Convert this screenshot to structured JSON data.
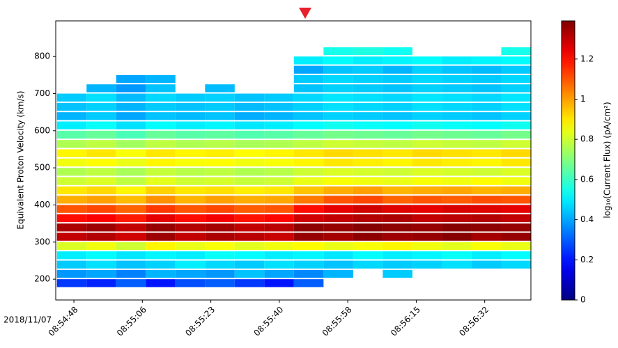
{
  "chart_data": {
    "type": "heatmap",
    "ylabel": "Equivalent Proton Velocity (km/s)",
    "date_label": "2018/11/07",
    "colorbar_label": "log₁₀(Current Flux) (pA/cm²)",
    "colormap": "jet",
    "clim": [
      0,
      1.39
    ],
    "cticks": [
      0,
      0.2,
      0.4,
      0.6,
      0.8,
      1.0,
      1.2
    ],
    "x": [
      "08:54:44.0",
      "08:54:51.5",
      "08:54:59.0",
      "08:55:06.5",
      "08:55:14.0",
      "08:55:21.5",
      "08:55:29.0",
      "08:55:36.5",
      "08:55:44.0",
      "08:55:51.5",
      "08:55:59.0",
      "08:56:06.5",
      "08:56:14.0",
      "08:56:21.5",
      "08:56:29.0",
      "08:56:36.5",
      "08:56:44.0"
    ],
    "y": [
      175,
      200,
      225,
      250,
      275,
      300,
      325,
      350,
      375,
      400,
      425,
      450,
      475,
      500,
      525,
      550,
      575,
      600,
      625,
      650,
      675,
      700,
      725,
      750,
      775,
      800,
      825
    ],
    "xlim": [
      "08:54:43.7",
      "08:56:44.0"
    ],
    "xticks": [
      {
        "value": "08:54:48.30",
        "label": "08:54:48"
      },
      {
        "value": "08:55:05.63",
        "label": "08:55:06"
      },
      {
        "value": "08:55:22.97",
        "label": "08:55:23"
      },
      {
        "value": "08:55:40.30",
        "label": "08:55:40"
      },
      {
        "value": "08:55:57.63",
        "label": "08:55:58"
      },
      {
        "value": "08:56:14.97",
        "label": "08:56:15"
      },
      {
        "value": "08:56:32.30",
        "label": "08:56:32"
      }
    ],
    "ylim": [
      144,
      896
    ],
    "yticks": [
      200,
      300,
      400,
      500,
      600,
      700,
      800
    ],
    "values": [
      [
        0.25,
        0.22,
        0.3,
        0.2,
        0.28,
        0.3,
        0.25,
        0.2,
        0.3,
        null,
        null,
        null,
        null,
        null,
        null,
        null
      ],
      [
        0.38,
        0.4,
        0.35,
        0.42,
        0.4,
        0.38,
        0.44,
        0.4,
        0.36,
        0.42,
        null,
        0.45,
        null,
        null,
        null,
        null
      ],
      [
        0.45,
        0.48,
        0.44,
        0.46,
        0.5,
        0.47,
        0.45,
        0.48,
        0.46,
        0.44,
        0.47,
        0.45,
        0.46,
        0.48,
        0.45,
        0.47
      ],
      [
        0.5,
        0.52,
        0.49,
        0.51,
        0.5,
        0.53,
        0.52,
        0.5,
        0.51,
        0.49,
        0.52,
        0.5,
        0.51,
        0.53,
        0.5,
        0.52
      ],
      [
        0.82,
        0.85,
        0.8,
        0.88,
        0.84,
        0.86,
        0.83,
        0.85,
        0.87,
        0.84,
        0.86,
        0.88,
        0.85,
        0.83,
        0.86,
        0.84
      ],
      [
        1.3,
        1.32,
        1.28,
        1.35,
        1.3,
        1.33,
        1.31,
        1.29,
        1.36,
        1.34,
        1.37,
        1.35,
        1.36,
        1.38,
        1.34,
        1.36
      ],
      [
        1.33,
        1.35,
        1.3,
        1.36,
        1.32,
        1.34,
        1.3,
        1.31,
        1.37,
        1.36,
        1.38,
        1.37,
        1.36,
        1.38,
        1.37,
        1.36
      ],
      [
        1.2,
        1.22,
        1.18,
        1.25,
        1.2,
        1.23,
        1.19,
        1.21,
        1.28,
        1.3,
        1.32,
        1.33,
        1.3,
        1.31,
        1.32,
        1.3
      ],
      [
        1.1,
        1.12,
        1.08,
        1.14,
        1.1,
        1.12,
        1.09,
        1.1,
        1.2,
        1.25,
        1.28,
        1.26,
        1.25,
        1.27,
        1.26,
        1.25
      ],
      [
        0.98,
        1.0,
        0.96,
        1.02,
        0.97,
        1.0,
        0.98,
        0.99,
        1.05,
        1.1,
        1.12,
        1.08,
        1.1,
        1.09,
        1.11,
        1.1
      ],
      [
        0.9,
        0.92,
        0.88,
        0.93,
        0.9,
        0.91,
        0.89,
        0.9,
        0.95,
        0.98,
        1.0,
        0.97,
        0.98,
        0.99,
        0.97,
        0.98
      ],
      [
        0.8,
        0.82,
        0.78,
        0.83,
        0.8,
        0.81,
        0.79,
        0.8,
        0.84,
        0.86,
        0.85,
        0.84,
        0.86,
        0.85,
        0.87,
        0.85
      ],
      [
        0.76,
        0.78,
        0.75,
        0.79,
        0.77,
        0.78,
        0.76,
        0.77,
        0.8,
        0.82,
        0.81,
        0.8,
        0.82,
        0.81,
        0.8,
        0.82
      ],
      [
        0.85,
        0.87,
        0.84,
        0.88,
        0.86,
        0.87,
        0.85,
        0.86,
        0.88,
        0.9,
        0.89,
        0.88,
        0.9,
        0.89,
        0.88,
        0.9
      ],
      [
        0.88,
        0.9,
        0.86,
        0.9,
        0.88,
        0.89,
        0.87,
        0.88,
        0.9,
        0.92,
        0.91,
        0.9,
        0.92,
        0.91,
        0.9,
        0.92
      ],
      [
        0.76,
        0.78,
        0.74,
        0.78,
        0.76,
        0.77,
        0.75,
        0.76,
        0.78,
        0.8,
        0.79,
        0.78,
        0.8,
        0.79,
        0.78,
        0.8
      ],
      [
        0.64,
        0.66,
        0.62,
        0.66,
        0.64,
        0.65,
        0.63,
        0.64,
        0.66,
        0.68,
        0.67,
        0.66,
        0.68,
        0.67,
        0.66,
        0.68
      ],
      [
        0.5,
        0.53,
        0.48,
        0.52,
        0.5,
        0.51,
        0.49,
        0.5,
        0.52,
        0.54,
        0.53,
        0.52,
        0.54,
        0.53,
        0.52,
        0.54
      ],
      [
        0.42,
        0.45,
        0.4,
        0.44,
        0.43,
        0.44,
        0.41,
        0.42,
        0.44,
        0.46,
        0.45,
        0.44,
        0.46,
        0.45,
        0.44,
        0.46
      ],
      [
        0.44,
        0.46,
        0.42,
        0.45,
        0.44,
        0.45,
        0.43,
        0.44,
        0.46,
        0.48,
        0.47,
        0.46,
        0.48,
        0.47,
        0.46,
        0.48
      ],
      [
        0.45,
        0.48,
        0.43,
        0.47,
        0.45,
        0.46,
        0.44,
        0.45,
        0.47,
        0.49,
        0.48,
        0.47,
        0.49,
        0.48,
        0.47,
        0.49
      ],
      [
        null,
        0.42,
        0.38,
        0.44,
        null,
        0.43,
        null,
        null,
        0.44,
        0.46,
        0.45,
        0.44,
        0.46,
        0.45,
        0.44,
        0.46
      ],
      [
        null,
        null,
        0.4,
        0.42,
        null,
        null,
        null,
        null,
        0.45,
        0.47,
        0.46,
        0.45,
        0.47,
        0.46,
        0.45,
        0.47
      ],
      [
        null,
        null,
        null,
        null,
        null,
        null,
        null,
        null,
        0.4,
        0.44,
        0.45,
        0.42,
        0.46,
        0.44,
        0.43,
        0.45
      ],
      [
        null,
        null,
        null,
        null,
        null,
        null,
        null,
        null,
        0.5,
        0.52,
        0.5,
        0.51,
        0.52,
        0.5,
        0.51,
        0.52
      ],
      [
        null,
        null,
        null,
        null,
        null,
        null,
        null,
        null,
        null,
        0.55,
        0.56,
        0.54,
        null,
        null,
        null,
        0.55
      ]
    ]
  }
}
